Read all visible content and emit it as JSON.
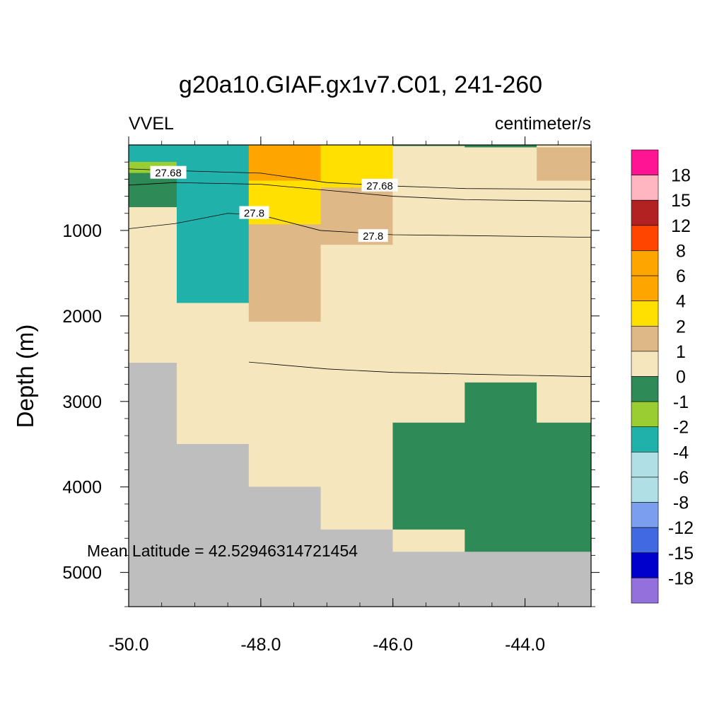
{
  "chart_data": {
    "type": "heatmap",
    "title": "g20a10.GIAF.gx1v7.C01, 241-260",
    "left_label": "VVEL",
    "right_label": "centimeter/s",
    "xlabel": "",
    "ylabel": "Depth (m)",
    "xlim": [
      -50.0,
      -43.0
    ],
    "ylim": [
      5400,
      0
    ],
    "x_ticks": [
      -50.0,
      -48.0,
      -46.0,
      -44.0
    ],
    "x_tick_labels": [
      "-50.0",
      "-48.0",
      "-46.0",
      "-44.0"
    ],
    "y_ticks": [
      1000,
      2000,
      3000,
      4000,
      5000
    ],
    "y_tick_labels": [
      "1000",
      "2000",
      "3000",
      "4000",
      "5000"
    ],
    "annotation": "Mean Latitude = 42.52946314721454",
    "land_color": "#BEBEBE",
    "colorbar": {
      "levels": [
        "18",
        "15",
        "12",
        "8",
        "6",
        "4",
        "2",
        "1",
        "0",
        "-1",
        "-2",
        "-4",
        "-6",
        "-8",
        "-12",
        "-15",
        "-18"
      ],
      "colors": [
        "#FF1493",
        "#FFB6C1",
        "#B22222",
        "#FF4500",
        "#FFA500",
        "#FFA500",
        "#FFE000",
        "#DEB887",
        "#F5E6BE",
        "#2E8B57",
        "#9ACD32",
        "#20B2AA",
        "#B0E0E6",
        "#B0E0E6",
        "#7B9FEE",
        "#4169E1",
        "#0000CD",
        "#9370DB"
      ]
    },
    "cells": [
      {
        "x": [
          -50.0,
          -49.27
        ],
        "y": [
          0,
          200
        ],
        "value": -3,
        "color": "#20B2AA"
      },
      {
        "x": [
          -50.0,
          -49.27
        ],
        "y": [
          200,
          330
        ],
        "value": -1.5,
        "color": "#9ACD32"
      },
      {
        "x": [
          -50.0,
          -49.27
        ],
        "y": [
          330,
          730
        ],
        "value": -0.5,
        "color": "#2E8B57"
      },
      {
        "x": [
          -50.0,
          -49.27
        ],
        "y": [
          730,
          2550
        ],
        "value": 0.5,
        "color": "#F5E6BE"
      },
      {
        "x": [
          -50.0,
          -49.27
        ],
        "y": [
          2550,
          5400
        ],
        "value": null,
        "color": "#BEBEBE"
      },
      {
        "x": [
          -49.27,
          -48.18
        ],
        "y": [
          0,
          1850
        ],
        "value": -3,
        "color": "#20B2AA"
      },
      {
        "x": [
          -49.27,
          -48.18
        ],
        "y": [
          1850,
          3500
        ],
        "value": 0.5,
        "color": "#F5E6BE"
      },
      {
        "x": [
          -49.27,
          -48.18
        ],
        "y": [
          3500,
          5400
        ],
        "value": null,
        "color": "#BEBEBE"
      },
      {
        "x": [
          -48.18,
          -47.09
        ],
        "y": [
          0,
          420
        ],
        "value": 5,
        "color": "#FFA500"
      },
      {
        "x": [
          -48.18,
          -47.09
        ],
        "y": [
          420,
          930
        ],
        "value": 3,
        "color": "#FFE000"
      },
      {
        "x": [
          -48.18,
          -47.09
        ],
        "y": [
          930,
          2070
        ],
        "value": 1.5,
        "color": "#DEB887"
      },
      {
        "x": [
          -48.18,
          -47.09
        ],
        "y": [
          2070,
          4000
        ],
        "value": 0.5,
        "color": "#F5E6BE"
      },
      {
        "x": [
          -48.18,
          -47.09
        ],
        "y": [
          4000,
          5400
        ],
        "value": null,
        "color": "#BEBEBE"
      },
      {
        "x": [
          -47.09,
          -46.0
        ],
        "y": [
          0,
          500
        ],
        "value": 3,
        "color": "#FFE000"
      },
      {
        "x": [
          -47.09,
          -46.0
        ],
        "y": [
          500,
          1170
        ],
        "value": 1.5,
        "color": "#DEB887"
      },
      {
        "x": [
          -47.09,
          -46.0
        ],
        "y": [
          1170,
          4500
        ],
        "value": 0.5,
        "color": "#F5E6BE"
      },
      {
        "x": [
          -47.09,
          -46.0
        ],
        "y": [
          4500,
          5400
        ],
        "value": null,
        "color": "#BEBEBE"
      },
      {
        "x": [
          -46.0,
          -44.91
        ],
        "y": [
          0,
          3250
        ],
        "value": 0.5,
        "color": "#F5E6BE"
      },
      {
        "x": [
          -46.0,
          -44.91
        ],
        "y": [
          3250,
          4500
        ],
        "value": -0.5,
        "color": "#2E8B57"
      },
      {
        "x": [
          -46.0,
          -44.91
        ],
        "y": [
          4500,
          4760
        ],
        "value": 0.5,
        "color": "#F5E6BE"
      },
      {
        "x": [
          -46.0,
          -44.91
        ],
        "y": [
          4760,
          5400
        ],
        "value": null,
        "color": "#BEBEBE"
      },
      {
        "x": [
          -44.91,
          -43.82
        ],
        "y": [
          0,
          30
        ],
        "value": -0.5,
        "color": "#2E8B57"
      },
      {
        "x": [
          -44.91,
          -43.82
        ],
        "y": [
          30,
          2780
        ],
        "value": 0.5,
        "color": "#F5E6BE"
      },
      {
        "x": [
          -44.91,
          -43.82
        ],
        "y": [
          2780,
          4760
        ],
        "value": -0.5,
        "color": "#2E8B57"
      },
      {
        "x": [
          -44.91,
          -43.82
        ],
        "y": [
          4760,
          5400
        ],
        "value": null,
        "color": "#BEBEBE"
      },
      {
        "x": [
          -43.82,
          -43.0
        ],
        "y": [
          0,
          30
        ],
        "value": 0.5,
        "color": "#F5E6BE"
      },
      {
        "x": [
          -43.82,
          -43.0
        ],
        "y": [
          30,
          420
        ],
        "value": 1.5,
        "color": "#DEB887"
      },
      {
        "x": [
          -43.82,
          -43.0
        ],
        "y": [
          420,
          3250
        ],
        "value": 0.5,
        "color": "#F5E6BE"
      },
      {
        "x": [
          -43.82,
          -43.0
        ],
        "y": [
          3250,
          4760
        ],
        "value": -0.5,
        "color": "#2E8B57"
      },
      {
        "x": [
          -43.82,
          -43.0
        ],
        "y": [
          4760,
          5400
        ],
        "value": null,
        "color": "#BEBEBE"
      },
      {
        "x": [
          -46.0,
          -44.91
        ],
        "y": [
          0,
          10
        ],
        "value": -0.5,
        "color": "#2E8B57"
      }
    ],
    "contours": [
      {
        "level": "27.68",
        "points": [
          [
            -50.0,
            280
          ],
          [
            -49.3,
            300
          ],
          [
            -48.0,
            330
          ],
          [
            -47.0,
            440
          ],
          [
            -46.0,
            480
          ],
          [
            -44.9,
            510
          ],
          [
            -43.0,
            520
          ]
        ],
        "label_at": [
          [
            -49.4,
            320
          ],
          [
            -46.2,
            470
          ]
        ]
      },
      {
        "level": "",
        "points": [
          [
            -50.0,
            470
          ],
          [
            -49.3,
            440
          ],
          [
            -48.0,
            460
          ],
          [
            -47.0,
            530
          ],
          [
            -46.0,
            600
          ],
          [
            -44.9,
            640
          ],
          [
            -43.0,
            660
          ]
        ],
        "label_at": []
      },
      {
        "level": "27.8",
        "points": [
          [
            -50.0,
            980
          ],
          [
            -49.3,
            920
          ],
          [
            -48.5,
            800
          ],
          [
            -48.0,
            820
          ],
          [
            -47.1,
            1000
          ],
          [
            -46.0,
            1050
          ],
          [
            -44.9,
            1060
          ],
          [
            -43.0,
            1080
          ]
        ],
        "label_at": [
          [
            -48.1,
            790
          ],
          [
            -46.3,
            1060
          ]
        ]
      },
      {
        "level": "",
        "points": [
          [
            -48.18,
            2540
          ],
          [
            -47.0,
            2620
          ],
          [
            -46.0,
            2660
          ],
          [
            -44.9,
            2680
          ],
          [
            -43.0,
            2710
          ]
        ],
        "label_at": []
      }
    ]
  }
}
